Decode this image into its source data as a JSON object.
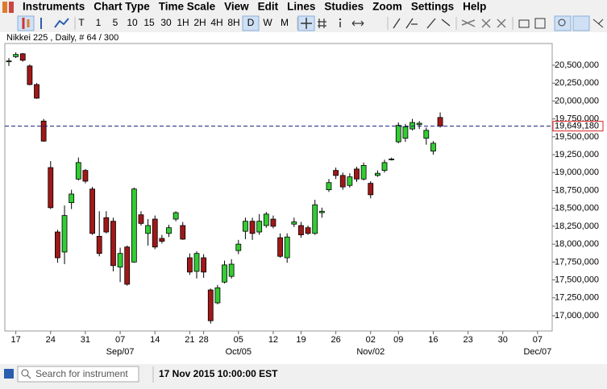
{
  "menu": [
    "Instruments",
    "Chart Type",
    "Time Scale",
    "View",
    "Edit",
    "Lines",
    "Studies",
    "Zoom",
    "Settings",
    "Help"
  ],
  "toolbar": {
    "timeframes": [
      "T",
      "1",
      "5",
      "10",
      "15",
      "30",
      "1H",
      "2H",
      "4H",
      "8H",
      "D",
      "W",
      "M"
    ],
    "selected": "D"
  },
  "chart_data": {
    "type": "candlestick",
    "title": "Nikkei 225 , Daily, # 64 / 300",
    "categories": [
      null,
      "17",
      null,
      null,
      null,
      null,
      "24",
      null,
      null,
      null,
      null,
      "31",
      null,
      null,
      null,
      null,
      "07",
      null,
      null,
      null,
      null,
      "14",
      null,
      null,
      null,
      null,
      "21",
      null,
      "28",
      null,
      null,
      null,
      null,
      "05",
      null,
      null,
      null,
      null,
      "12",
      null,
      null,
      null,
      "19",
      null,
      null,
      null,
      null,
      "26",
      null,
      null,
      null,
      null,
      "02",
      null,
      null,
      null,
      "09",
      null,
      null,
      null,
      null,
      "16",
      null,
      null,
      null,
      null,
      "23",
      null,
      null,
      null,
      null,
      "30",
      null,
      null,
      null,
      null,
      "07"
    ],
    "sublabels": [
      null,
      null,
      null,
      null,
      null,
      null,
      null,
      null,
      null,
      null,
      null,
      null,
      null,
      null,
      null,
      null,
      "Sep/07",
      null,
      null,
      null,
      null,
      null,
      null,
      null,
      null,
      null,
      null,
      null,
      null,
      null,
      null,
      null,
      null,
      "Oct/05",
      null,
      null,
      null,
      null,
      null,
      null,
      null,
      null,
      null,
      null,
      null,
      null,
      null,
      null,
      null,
      null,
      null,
      null,
      "Nov/02",
      null,
      null,
      null,
      null,
      null,
      null,
      null,
      null,
      null,
      null,
      null,
      null,
      null,
      null,
      null,
      null,
      null,
      null,
      null,
      null,
      null,
      null,
      null,
      "Dec/07"
    ],
    "open": [
      20550000,
      20620000,
      20660000,
      20490000,
      20230000,
      19720000,
      19070000,
      18170000,
      17890000,
      18580000,
      18910000,
      19030000,
      18770000,
      18110000,
      18370000,
      18320000,
      17680000,
      17960000,
      17750000,
      18410000,
      18150000,
      18350000,
      18080000,
      18150000,
      18350000,
      18260000,
      17810000,
      17620000,
      17810000,
      17360000,
      17180000,
      17470000,
      17550000,
      17910000,
      18180000,
      18320000,
      18170000,
      18260000,
      18350000,
      18090000,
      17810000,
      18280000,
      18260000,
      18230000,
      18150000,
      18440000,
      18760000,
      19030000,
      18960000,
      18820000,
      19050000,
      18910000,
      18850000,
      18960000,
      19030000,
      19180000,
      19430000,
      19480000,
      19610000,
      19670000,
      19480000,
      19300000,
      19770000,
      null,
      null,
      null,
      null,
      null,
      null,
      null,
      null,
      null,
      null,
      null,
      null,
      null,
      null
    ],
    "high": [
      20600000,
      20680000,
      20670000,
      20510000,
      20250000,
      19750000,
      19160000,
      18200000,
      18540000,
      18760000,
      19210000,
      19050000,
      18800000,
      18460000,
      18460000,
      18370000,
      17950000,
      17980000,
      18790000,
      18460000,
      18350000,
      18400000,
      18130000,
      18270000,
      18460000,
      18310000,
      17870000,
      17900000,
      17860000,
      17380000,
      17430000,
      17770000,
      17790000,
      18060000,
      18370000,
      18370000,
      18420000,
      18450000,
      18400000,
      18150000,
      18150000,
      18370000,
      18310000,
      18260000,
      18620000,
      18510000,
      18910000,
      19070000,
      19000000,
      18990000,
      19080000,
      19140000,
      18880000,
      19030000,
      19180000,
      19210000,
      19700000,
      19680000,
      19750000,
      19720000,
      19630000,
      19440000,
      19840000,
      null,
      null,
      null,
      null,
      null,
      null,
      null,
      null,
      null,
      null,
      null,
      null,
      null,
      null
    ],
    "low": [
      20490000,
      20600000,
      20550000,
      20220000,
      20030000,
      19430000,
      18490000,
      17740000,
      17720000,
      18490000,
      18890000,
      18850000,
      18130000,
      17830000,
      18150000,
      17620000,
      17470000,
      17420000,
      17740000,
      18260000,
      17980000,
      17930000,
      18010000,
      18100000,
      18320000,
      18060000,
      17570000,
      17520000,
      17530000,
      16890000,
      17160000,
      17450000,
      17520000,
      17860000,
      18070000,
      18060000,
      18130000,
      18230000,
      18220000,
      17810000,
      17740000,
      18240000,
      18090000,
      18130000,
      18130000,
      18370000,
      18730000,
      18910000,
      18760000,
      18790000,
      18870000,
      18890000,
      18640000,
      18940000,
      19000000,
      19170000,
      19410000,
      19430000,
      19590000,
      19610000,
      19390000,
      19250000,
      19630000,
      null,
      null,
      null,
      null,
      null,
      null,
      null,
      null,
      null,
      null,
      null,
      null,
      null,
      null
    ],
    "close": [
      20560000,
      20650000,
      20570000,
      20230000,
      20040000,
      19440000,
      18510000,
      17810000,
      18400000,
      18700000,
      19140000,
      18880000,
      18150000,
      17870000,
      18170000,
      17700000,
      17870000,
      17440000,
      18770000,
      18290000,
      18260000,
      17960000,
      18040000,
      18230000,
      18440000,
      18070000,
      17610000,
      17870000,
      17610000,
      16930000,
      17390000,
      17710000,
      17720000,
      18000000,
      18320000,
      18150000,
      18320000,
      18420000,
      18250000,
      17830000,
      18100000,
      18310000,
      18130000,
      18150000,
      18550000,
      18460000,
      18860000,
      18960000,
      18800000,
      18940000,
      18910000,
      19100000,
      18690000,
      18990000,
      19140000,
      19190000,
      19660000,
      19640000,
      19700000,
      19690000,
      19590000,
      19410000,
      19649180,
      null,
      null,
      null,
      null,
      null,
      null,
      null,
      null,
      null,
      null,
      null,
      null,
      null,
      null
    ],
    "up_color": "#33cc33",
    "down_color": "#a01818",
    "ylim": [
      16786200,
      20803900
    ],
    "yticks": [
      {
        "value": 17000000,
        "label": "17,000,000"
      },
      {
        "value": 17250000,
        "label": "17,250,000"
      },
      {
        "value": 17500000,
        "label": "17,500,000"
      },
      {
        "value": 17750000,
        "label": "17,750,000"
      },
      {
        "value": 18000000,
        "label": "18,000,000"
      },
      {
        "value": 18250000,
        "label": "18,250,000"
      },
      {
        "value": 18500000,
        "label": "18,500,000"
      },
      {
        "value": 18750000,
        "label": "18,750,000"
      },
      {
        "value": 19000000,
        "label": "19,000,000"
      },
      {
        "value": 19250000,
        "label": "19,250,000"
      },
      {
        "value": 19500000,
        "label": "19,500,000"
      },
      {
        "value": 19750000,
        "label": "19,750,000"
      },
      {
        "value": 20000000,
        "label": "20,000,000"
      },
      {
        "value": 20250000,
        "label": "20,250,000"
      },
      {
        "value": 20500000,
        "label": "20,500,000"
      }
    ],
    "last_price": {
      "value": 19649180,
      "label": "19,649,180"
    },
    "last_price_color": "#1a1a7a",
    "grid": false
  },
  "status_bar": {
    "search_placeholder": "Search for instrument",
    "datetime": "17 Nov 2015 10:00:00 EST"
  }
}
